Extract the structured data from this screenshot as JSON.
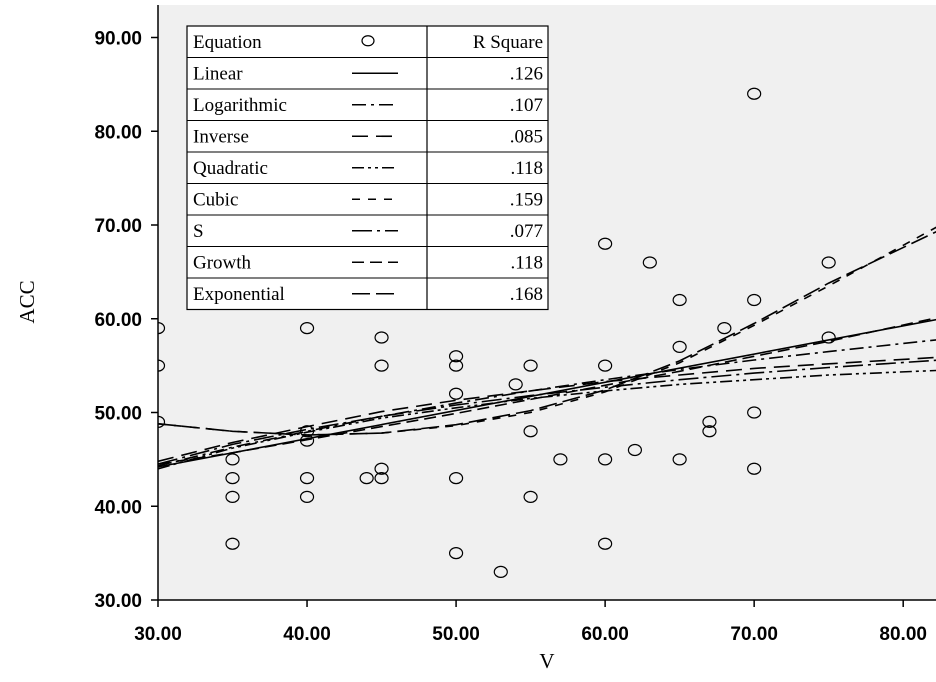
{
  "chart_data": {
    "type": "scatter",
    "xlabel": "V",
    "ylabel": "ACC",
    "xlim": [
      30,
      82.5
    ],
    "ylim": [
      30,
      92
    ],
    "x_ticks": [
      "30.00",
      "40.00",
      "50.00",
      "60.00",
      "70.00",
      "80.00"
    ],
    "y_ticks": [
      "30.00",
      "40.00",
      "50.00",
      "60.00",
      "70.00",
      "80.00",
      "90.00"
    ],
    "grid": false,
    "background": "#f0f0f0",
    "points": [
      {
        "x": 30,
        "y": 59
      },
      {
        "x": 30,
        "y": 55
      },
      {
        "x": 30,
        "y": 49
      },
      {
        "x": 35,
        "y": 45
      },
      {
        "x": 35,
        "y": 43
      },
      {
        "x": 35,
        "y": 41
      },
      {
        "x": 35,
        "y": 36
      },
      {
        "x": 40,
        "y": 59
      },
      {
        "x": 40,
        "y": 48
      },
      {
        "x": 40,
        "y": 47
      },
      {
        "x": 40,
        "y": 43
      },
      {
        "x": 40,
        "y": 41
      },
      {
        "x": 44,
        "y": 43
      },
      {
        "x": 45,
        "y": 58
      },
      {
        "x": 45,
        "y": 55
      },
      {
        "x": 45,
        "y": 44
      },
      {
        "x": 45,
        "y": 43
      },
      {
        "x": 50,
        "y": 56
      },
      {
        "x": 50,
        "y": 55
      },
      {
        "x": 50,
        "y": 52
      },
      {
        "x": 50,
        "y": 43
      },
      {
        "x": 50,
        "y": 35
      },
      {
        "x": 53,
        "y": 33
      },
      {
        "x": 54,
        "y": 53
      },
      {
        "x": 55,
        "y": 55
      },
      {
        "x": 55,
        "y": 48
      },
      {
        "x": 55,
        "y": 41
      },
      {
        "x": 57,
        "y": 45
      },
      {
        "x": 60,
        "y": 68
      },
      {
        "x": 60,
        "y": 55
      },
      {
        "x": 60,
        "y": 45
      },
      {
        "x": 60,
        "y": 36
      },
      {
        "x": 62,
        "y": 46
      },
      {
        "x": 63,
        "y": 66
      },
      {
        "x": 65,
        "y": 62
      },
      {
        "x": 65,
        "y": 57
      },
      {
        "x": 65,
        "y": 45
      },
      {
        "x": 67,
        "y": 49
      },
      {
        "x": 67,
        "y": 48
      },
      {
        "x": 68,
        "y": 59
      },
      {
        "x": 70,
        "y": 84
      },
      {
        "x": 70,
        "y": 62
      },
      {
        "x": 70,
        "y": 50
      },
      {
        "x": 70,
        "y": 44
      },
      {
        "x": 75,
        "y": 66
      },
      {
        "x": 75,
        "y": 58
      }
    ],
    "series": [
      {
        "name": "Linear",
        "r_square": ".126",
        "dash": "",
        "x": [
          30,
          82.5
        ],
        "y": [
          44.2,
          60.0
        ]
      },
      {
        "name": "Logarithmic",
        "r_square": ".107",
        "dash": "14,5,3,5",
        "x": [
          30,
          35,
          40,
          45,
          50,
          55,
          60,
          65,
          70,
          75,
          82.5
        ],
        "y": [
          44.3,
          46.3,
          48.0,
          49.6,
          51.0,
          52.3,
          53.5,
          54.6,
          55.6,
          56.5,
          57.8
        ]
      },
      {
        "name": "Inverse",
        "r_square": ".085",
        "dash": "16,8",
        "x": [
          30,
          35,
          40,
          45,
          50,
          55,
          60,
          65,
          70,
          75,
          82.5
        ],
        "y": [
          44.8,
          46.8,
          48.5,
          50.1,
          51.3,
          52.3,
          53.3,
          54.0,
          54.7,
          55.2,
          55.9
        ]
      },
      {
        "name": "Quadratic",
        "r_square": ".118",
        "dash": "12,4,3,4,3,4",
        "x": [
          30,
          35,
          40,
          45,
          50,
          55,
          60,
          65,
          70,
          75,
          82.5
        ],
        "y": [
          44.0,
          46.2,
          47.9,
          49.4,
          50.5,
          51.5,
          52.3,
          53.0,
          53.5,
          54.0,
          54.5
        ]
      },
      {
        "name": "Cubic",
        "r_square": ".159",
        "dash": "8,8",
        "x": [
          30,
          35,
          40,
          45,
          50,
          55,
          60,
          65,
          70,
          75,
          82.5
        ],
        "y": [
          48.8,
          48.0,
          47.6,
          47.8,
          48.6,
          50.0,
          52.2,
          55.3,
          59.3,
          63.5,
          70.0
        ]
      },
      {
        "name": "S",
        "r_square": ".077",
        "dash": "20,5,3,5",
        "x": [
          30,
          35,
          40,
          45,
          50,
          55,
          60,
          65,
          70,
          75,
          82.5
        ],
        "y": [
          44.5,
          46.6,
          48.2,
          49.6,
          50.8,
          51.8,
          52.7,
          53.5,
          54.2,
          54.8,
          55.6
        ]
      },
      {
        "name": "Growth",
        "r_square": ".118",
        "dash": "12,6",
        "x": [
          30,
          35,
          40,
          45,
          50,
          55,
          60,
          65,
          70,
          75,
          82.5
        ],
        "y": [
          44.5,
          45.7,
          47.1,
          48.5,
          49.9,
          51.4,
          52.9,
          54.4,
          56.0,
          57.6,
          60.2
        ]
      },
      {
        "name": "Exponential",
        "r_square": ".168",
        "dash": "18,6",
        "x": [
          30,
          35,
          40,
          45,
          50,
          55,
          60,
          65,
          70,
          75,
          82.5
        ],
        "y": [
          48.8,
          48.0,
          47.6,
          47.8,
          48.7,
          50.2,
          52.4,
          55.5,
          59.5,
          63.8,
          69.5
        ]
      }
    ],
    "legend": {
      "placement": "top-left",
      "header": {
        "equation": "Equation",
        "r_square": "R Square"
      }
    }
  }
}
